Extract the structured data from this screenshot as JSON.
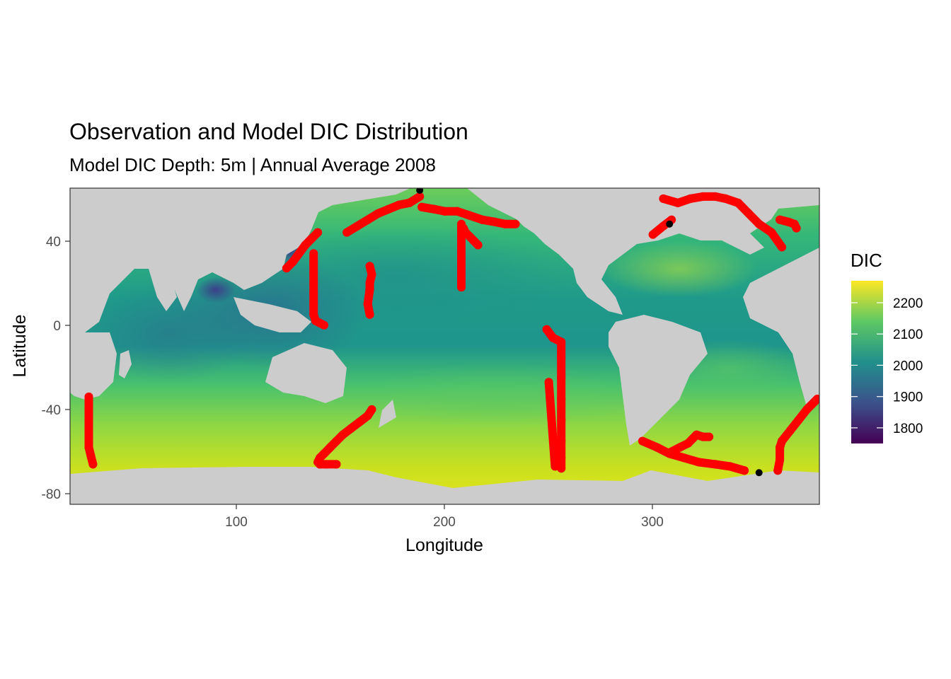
{
  "chart_data": {
    "type": "heatmap",
    "title": "Observation and Model DIC Distribution",
    "subtitle": "Model DIC Depth: 5m | Annual Average 2008",
    "xlabel": "Longitude",
    "ylabel": "Latitude",
    "xlim": [
      20,
      380
    ],
    "ylim": [
      -85,
      65
    ],
    "x_ticks": [
      100,
      200,
      300
    ],
    "y_ticks": [
      40,
      0,
      -40,
      -80
    ],
    "x_tick_labels": [
      "100",
      "200",
      "300"
    ],
    "y_tick_labels": [
      "40",
      "0",
      "-40",
      "-80"
    ],
    "colorbar": {
      "title": "DIC",
      "range": [
        1750,
        2270
      ],
      "ticks": [
        2200,
        2100,
        2000,
        1900,
        1800
      ],
      "tick_labels": [
        "2200",
        "2100",
        "2000",
        "1900",
        "1800"
      ],
      "palette": "viridis",
      "colors": [
        "#440154",
        "#3B528B",
        "#21908C",
        "#5DC863",
        "#FDE725"
      ],
      "land_color": "#CCCCCC"
    },
    "observations": {
      "color": "#FF0000",
      "tracks": [
        {
          "lon": [
            29,
            29,
            29,
            29,
            29,
            29,
            29,
            30,
            31
          ],
          "lat": [
            -34,
            -38,
            -42,
            -46,
            -50,
            -54,
            -58,
            -62,
            -66
          ]
        },
        {
          "lon": [
            165,
            163,
            159,
            155,
            151,
            148,
            145,
            142,
            140,
            139,
            140,
            143,
            148
          ],
          "lat": [
            -40,
            -43,
            -46,
            -49,
            -52,
            -55,
            -58,
            -61,
            -63,
            -65,
            -66,
            -66,
            -66
          ]
        },
        {
          "lon": [
            137,
            137,
            137,
            137,
            137,
            137,
            137,
            138,
            140,
            142
          ],
          "lat": [
            34,
            30,
            25,
            20,
            15,
            10,
            5,
            2,
            1,
            0
          ]
        },
        {
          "lon": [
            124,
            127,
            130,
            133,
            136,
            139
          ],
          "lat": [
            27,
            30,
            34,
            38,
            41,
            44
          ]
        },
        {
          "lon": [
            164,
            165,
            164,
            164,
            163,
            164
          ],
          "lat": [
            28,
            24,
            20,
            17,
            10,
            5
          ]
        },
        {
          "lon": [
            153,
            158,
            163,
            168,
            173,
            178,
            183,
            188
          ],
          "lat": [
            44,
            47,
            50,
            53,
            55,
            57,
            58,
            61
          ]
        },
        {
          "lon": [
            189,
            195,
            200,
            206,
            212,
            218,
            224,
            229,
            234
          ],
          "lat": [
            56,
            55,
            54,
            54,
            52,
            50,
            49,
            48,
            48
          ]
        },
        {
          "lon": [
            208,
            208,
            208,
            208,
            208,
            208,
            208
          ],
          "lat": [
            48,
            40,
            33,
            28,
            25,
            22,
            18
          ]
        },
        {
          "lon": [
            209,
            210,
            212,
            214,
            216
          ],
          "lat": [
            46,
            44,
            42,
            40,
            38
          ]
        },
        {
          "lon": [
            249,
            252,
            256,
            256,
            256,
            256,
            256,
            256,
            256,
            256
          ],
          "lat": [
            -2,
            -6,
            -8,
            -15,
            -25,
            -35,
            -45,
            -55,
            -63,
            -68
          ]
        },
        {
          "lon": [
            250,
            253
          ],
          "lat": [
            -27,
            -67
          ]
        },
        {
          "lon": [
            295,
            302,
            308,
            315,
            322,
            330,
            337,
            344
          ],
          "lat": [
            -55,
            -58,
            -61,
            -63,
            -65,
            -66,
            -67,
            -69
          ]
        },
        {
          "lon": [
            309,
            313,
            317,
            319,
            321,
            324,
            327
          ],
          "lat": [
            -60,
            -58,
            -56,
            -54,
            -52,
            -53,
            -53
          ]
        },
        {
          "lon": [
            360,
            361,
            361,
            362,
            366,
            370,
            374,
            379
          ],
          "lat": [
            -69,
            -64,
            -58,
            -55,
            -50,
            -45,
            -40,
            -35
          ]
        },
        {
          "lon": [
            305,
            312,
            318,
            324,
            330,
            335,
            341,
            346,
            351,
            357,
            362
          ],
          "lat": [
            60,
            58,
            60,
            61,
            61,
            60,
            58,
            53,
            48,
            44,
            37
          ]
        },
        {
          "lon": [
            361,
            365,
            368,
            369
          ],
          "lat": [
            50,
            49,
            48,
            46
          ]
        },
        {
          "lon": [
            300,
            305,
            309
          ],
          "lat": [
            43,
            47,
            50
          ]
        }
      ]
    },
    "black_points": [
      {
        "lon": 308,
        "lat": 48
      },
      {
        "lon": 351,
        "lat": -70
      },
      {
        "lon": 188,
        "lat": 64
      }
    ]
  }
}
